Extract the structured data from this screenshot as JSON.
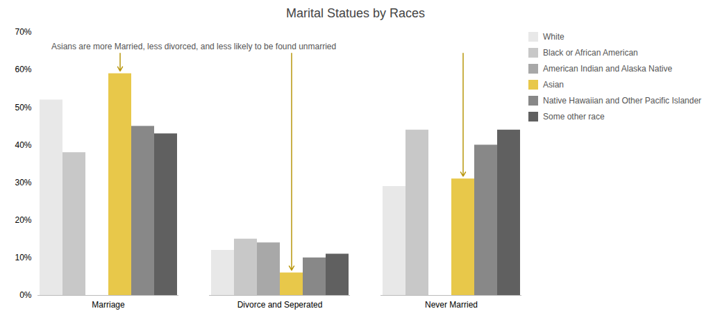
{
  "chart_data": {
    "type": "bar",
    "title": "Marital Statues by Races",
    "categories": [
      "Marriage",
      "Divorce and Seperated",
      "Never Married"
    ],
    "series": [
      {
        "name": "White",
        "color": "#e8e8e8",
        "values": [
          52,
          12,
          29
        ]
      },
      {
        "name": "Black or African American",
        "color": "#c8c8c8",
        "values": [
          38,
          15,
          44
        ]
      },
      {
        "name": "American Indian and Alaska Native",
        "color": "#a8a8a8",
        "values": [
          0,
          14,
          0
        ]
      },
      {
        "name": "Asian",
        "color": "#e8c84a",
        "values": [
          59,
          6,
          31
        ]
      },
      {
        "name": "Native Hawaiian and Other Pacific Islander",
        "color": "#888888",
        "values": [
          45,
          10,
          40
        ]
      },
      {
        "name": "Some other race",
        "color": "#606060",
        "values": [
          43,
          11,
          44
        ]
      }
    ],
    "ylim": [
      0,
      70
    ],
    "yticks": [
      {
        "value": 0,
        "label": "0%"
      },
      {
        "value": 10,
        "label": "10%"
      },
      {
        "value": 20,
        "label": "20%"
      },
      {
        "value": 30,
        "label": "30%"
      },
      {
        "value": 40,
        "label": "40%"
      },
      {
        "value": 50,
        "label": "50%"
      },
      {
        "value": 60,
        "label": "60%"
      },
      {
        "value": 70,
        "label": "70%"
      }
    ],
    "grid": false,
    "legend": "upper right",
    "annotations": [
      {
        "text": "Asians are more Married, less divorced, and less likely to be found unmarried",
        "series": "Asian",
        "color": "#b8960c"
      }
    ]
  }
}
